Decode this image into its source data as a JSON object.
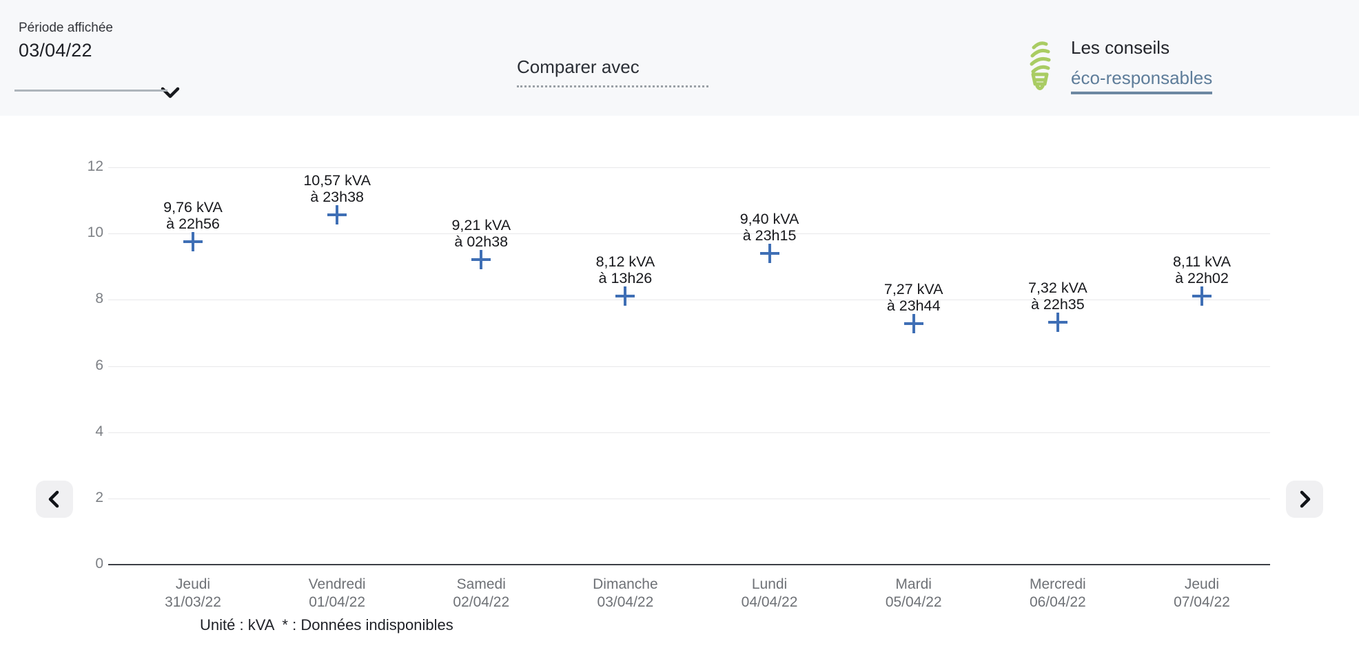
{
  "header": {
    "period_label": "Période affichée",
    "period_value": "03/04/22",
    "compare_label": "Comparer avec",
    "tips_line1": "Les conseils",
    "tips_link": "éco-responsables"
  },
  "footnote": "Unité : kVA  * : Données indisponibles",
  "colors": {
    "marker_blue": "#3f6fb5",
    "bulb_green": "#a9cc63",
    "link_blue": "#5e7d9a",
    "header_bg": "#f7f8fa",
    "gridline": "#e8e8ea",
    "axis": "#3c3f45"
  },
  "chart_data": {
    "type": "scatter",
    "unit": "kVA",
    "marker": "plus",
    "marker_color": "#3f6fb5",
    "grid": true,
    "ylim": [
      0,
      12
    ],
    "yticks": [
      0,
      2,
      4,
      6,
      8,
      10,
      12
    ],
    "categories": [
      "Jeudi 31/03/22",
      "Vendredi 01/04/22",
      "Samedi 02/04/22",
      "Dimanche 03/04/22",
      "Lundi 04/04/22",
      "Mardi 05/04/22",
      "Mercredi 06/04/22",
      "Jeudi 07/04/22"
    ],
    "points": [
      {
        "day": "Jeudi",
        "date": "31/03/22",
        "value": 9.76,
        "value_label": "9,76 kVA",
        "time_label": "à 22h56"
      },
      {
        "day": "Vendredi",
        "date": "01/04/22",
        "value": 10.57,
        "value_label": "10,57 kVA",
        "time_label": "à 23h38"
      },
      {
        "day": "Samedi",
        "date": "02/04/22",
        "value": 9.21,
        "value_label": "9,21 kVA",
        "time_label": "à 02h38"
      },
      {
        "day": "Dimanche",
        "date": "03/04/22",
        "value": 8.12,
        "value_label": "8,12 kVA",
        "time_label": "à 13h26"
      },
      {
        "day": "Lundi",
        "date": "04/04/22",
        "value": 9.4,
        "value_label": "9,40 kVA",
        "time_label": "à 23h15"
      },
      {
        "day": "Mardi",
        "date": "05/04/22",
        "value": 7.27,
        "value_label": "7,27 kVA",
        "time_label": "à 23h44"
      },
      {
        "day": "Mercredi",
        "date": "06/04/22",
        "value": 7.32,
        "value_label": "7,32 kVA",
        "time_label": "à 22h35"
      },
      {
        "day": "Jeudi",
        "date": "07/04/22",
        "value": 8.11,
        "value_label": "8,11 kVA",
        "time_label": "à 22h02"
      }
    ]
  }
}
